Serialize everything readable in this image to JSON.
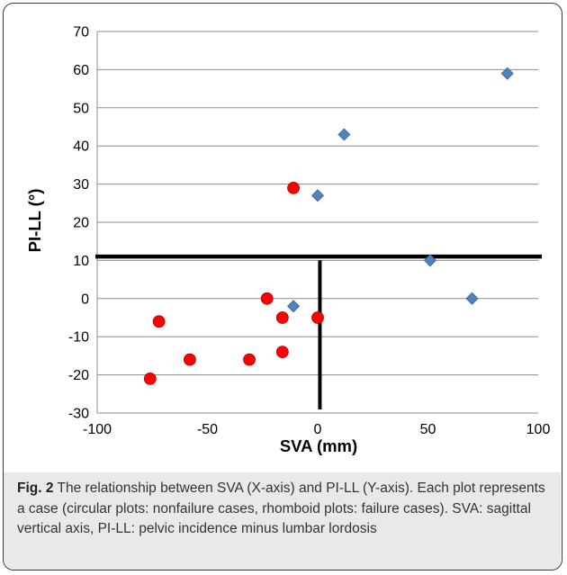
{
  "chart_data": {
    "type": "scatter",
    "xlabel": "SVA (mm)",
    "ylabel": "PI-LL (°)",
    "xlim": [
      -100,
      100
    ],
    "ylim": [
      -30,
      70
    ],
    "x_ticks": [
      -100,
      -50,
      0,
      50,
      100
    ],
    "x_tick_labels": [
      "-100",
      "-50",
      "0",
      "50",
      "100"
    ],
    "y_ticks": [
      -30,
      -20,
      -10,
      0,
      10,
      20,
      30,
      40,
      50,
      60,
      70
    ],
    "y_tick_labels": [
      "-30",
      "-20",
      "-10",
      "0",
      "10",
      "20",
      "30",
      "40",
      "50",
      "60",
      "70"
    ],
    "grid": "horizontal",
    "series": [
      {
        "marker": "circle",
        "color": "#ff0000",
        "points": [
          {
            "x": -76,
            "y": -21
          },
          {
            "x": -72,
            "y": -6
          },
          {
            "x": -58,
            "y": -16
          },
          {
            "x": -31,
            "y": -16
          },
          {
            "x": -23,
            "y": 0
          },
          {
            "x": -16,
            "y": -5
          },
          {
            "x": -16,
            "y": -14
          },
          {
            "x": -11,
            "y": 29
          },
          {
            "x": 0,
            "y": -5
          }
        ]
      },
      {
        "marker": "diamond",
        "color": "#4f81bd",
        "points": [
          {
            "x": -11,
            "y": -2
          },
          {
            "x": 0,
            "y": 27
          },
          {
            "x": 12,
            "y": 43
          },
          {
            "x": 51,
            "y": 10
          },
          {
            "x": 70,
            "y": 0
          },
          {
            "x": 86,
            "y": 59
          }
        ]
      }
    ],
    "reference_lines": [
      {
        "orientation": "horizontal",
        "y": 11,
        "x_from": -100,
        "x_to": 100
      },
      {
        "orientation": "vertical",
        "x": 1,
        "y_from": -30,
        "y_to": 10
      }
    ]
  },
  "caption": {
    "label": "Fig. 2",
    "text": "The relationship between SVA (X-axis) and PI-LL (Y-axis). Each plot represents a case (circular plots: nonfailure cases, rhomboid plots: failure cases). SVA: sagittal vertical axis, PI-LL: pelvic incidence minus lumbar lordosis"
  }
}
